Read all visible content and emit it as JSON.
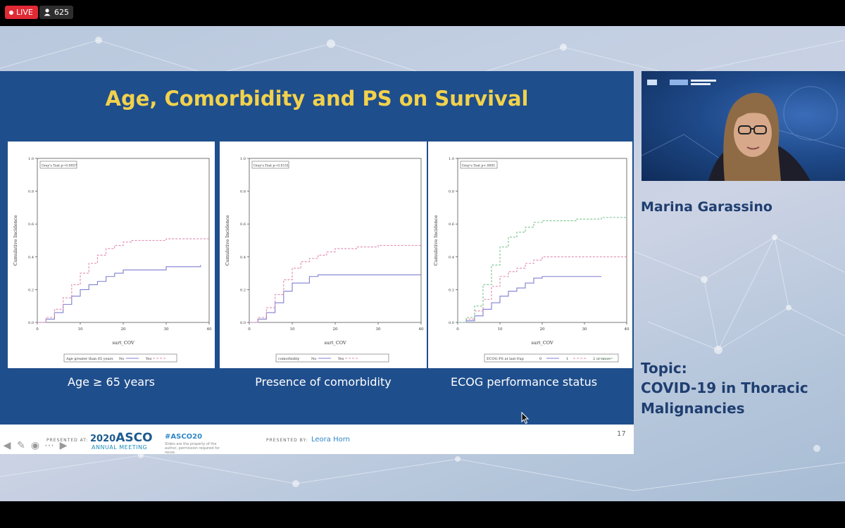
{
  "stream": {
    "live_label": "LIVE",
    "viewer_count": "625",
    "live_color": "#e02a35"
  },
  "slide": {
    "title": "Age, Comorbidity and PS on Survival",
    "title_color": "#f2d24c",
    "background": "#1f4e8c",
    "page_number": "17",
    "captions": [
      "Age ≥ 65 years",
      "Presence of comorbidity",
      "ECOG performance status"
    ],
    "footer": {
      "presented_at": "PRESENTED AT:",
      "meeting_year": "2020",
      "meeting_name": "ASCO",
      "meeting_subtitle": "ANNUAL MEETING",
      "hashtag": "#ASCO20",
      "disclaimer": "Slides are the property of the author, permission required for reuse.",
      "presented_by": "PRESENTED BY:",
      "presenter": "Leora Horn"
    }
  },
  "chart_data": [
    {
      "type": "line",
      "test_label": "Gray's Test p=0.0057",
      "xlabel": "surt_COV",
      "ylabel": "Cumulative Incidence",
      "xlim": [
        0,
        40
      ],
      "ylim": [
        0,
        1.0
      ],
      "x_ticks": [
        "0",
        "10",
        "20",
        "30",
        "40"
      ],
      "y_ticks": [
        "0.0",
        "0.2",
        "0.4",
        "0.6",
        "0.8",
        "1.0"
      ],
      "legend_title": "Age greater than 65 years",
      "series": [
        {
          "name": "No",
          "color": "#7f7fd0",
          "dashed": false,
          "points": [
            [
              0,
              0
            ],
            [
              2,
              0.02
            ],
            [
              4,
              0.06
            ],
            [
              6,
              0.11
            ],
            [
              8,
              0.16
            ],
            [
              10,
              0.2
            ],
            [
              12,
              0.23
            ],
            [
              14,
              0.25
            ],
            [
              16,
              0.28
            ],
            [
              18,
              0.3
            ],
            [
              20,
              0.32
            ],
            [
              24,
              0.32
            ],
            [
              30,
              0.34
            ],
            [
              38,
              0.35
            ]
          ]
        },
        {
          "name": "Yes",
          "color": "#e08ab0",
          "dashed": true,
          "points": [
            [
              0,
              0
            ],
            [
              2,
              0.03
            ],
            [
              4,
              0.08
            ],
            [
              6,
              0.15
            ],
            [
              8,
              0.23
            ],
            [
              10,
              0.3
            ],
            [
              12,
              0.36
            ],
            [
              14,
              0.41
            ],
            [
              16,
              0.45
            ],
            [
              18,
              0.47
            ],
            [
              20,
              0.49
            ],
            [
              22,
              0.5
            ],
            [
              30,
              0.51
            ],
            [
              40,
              0.51
            ]
          ]
        }
      ]
    },
    {
      "type": "line",
      "test_label": "Gray's Test p=0.0151",
      "xlabel": "surt_COV",
      "ylabel": "Cumulative Incidence",
      "xlim": [
        0,
        40
      ],
      "ylim": [
        0,
        1.0
      ],
      "x_ticks": [
        "0",
        "10",
        "20",
        "30",
        "40"
      ],
      "y_ticks": [
        "0.0",
        "0.2",
        "0.4",
        "0.6",
        "0.8",
        "1.0"
      ],
      "legend_title": "comorbidity",
      "series": [
        {
          "name": "No",
          "color": "#7f7fd0",
          "dashed": false,
          "points": [
            [
              0,
              0
            ],
            [
              2,
              0.02
            ],
            [
              4,
              0.06
            ],
            [
              6,
              0.12
            ],
            [
              8,
              0.19
            ],
            [
              10,
              0.24
            ],
            [
              14,
              0.28
            ],
            [
              16,
              0.29
            ],
            [
              30,
              0.29
            ],
            [
              40,
              0.29
            ]
          ]
        },
        {
          "name": "Yes",
          "color": "#e08ab0",
          "dashed": true,
          "points": [
            [
              0,
              0
            ],
            [
              2,
              0.03
            ],
            [
              4,
              0.09
            ],
            [
              6,
              0.17
            ],
            [
              8,
              0.26
            ],
            [
              10,
              0.33
            ],
            [
              12,
              0.37
            ],
            [
              14,
              0.39
            ],
            [
              16,
              0.41
            ],
            [
              18,
              0.43
            ],
            [
              20,
              0.45
            ],
            [
              25,
              0.46
            ],
            [
              30,
              0.47
            ],
            [
              40,
              0.47
            ]
          ]
        }
      ]
    },
    {
      "type": "line",
      "test_label": "Gray's Test p<.0001",
      "xlabel": "surt_COV",
      "ylabel": "Cumulative Incidence",
      "xlim": [
        0,
        40
      ],
      "ylim": [
        0,
        1.0
      ],
      "x_ticks": [
        "0",
        "10",
        "20",
        "30",
        "40"
      ],
      "y_ticks": [
        "0.0",
        "0.2",
        "0.4",
        "0.6",
        "0.8",
        "1.0"
      ],
      "legend_title": "ECOG PS at last f/up",
      "series": [
        {
          "name": "0",
          "color": "#7f7fd0",
          "dashed": false,
          "points": [
            [
              0,
              0
            ],
            [
              2,
              0.01
            ],
            [
              4,
              0.04
            ],
            [
              6,
              0.08
            ],
            [
              8,
              0.12
            ],
            [
              10,
              0.16
            ],
            [
              12,
              0.19
            ],
            [
              14,
              0.21
            ],
            [
              16,
              0.24
            ],
            [
              18,
              0.27
            ],
            [
              20,
              0.28
            ],
            [
              34,
              0.28
            ]
          ]
        },
        {
          "name": "1",
          "color": "#e08ab0",
          "dashed": true,
          "points": [
            [
              0,
              0
            ],
            [
              2,
              0.02
            ],
            [
              4,
              0.07
            ],
            [
              6,
              0.14
            ],
            [
              8,
              0.22
            ],
            [
              10,
              0.28
            ],
            [
              12,
              0.31
            ],
            [
              14,
              0.33
            ],
            [
              16,
              0.36
            ],
            [
              18,
              0.38
            ],
            [
              20,
              0.4
            ],
            [
              40,
              0.4
            ]
          ]
        },
        {
          "name": "2 or more",
          "color": "#7ac58f",
          "dashed": true,
          "points": [
            [
              0,
              0
            ],
            [
              2,
              0.03
            ],
            [
              4,
              0.1
            ],
            [
              6,
              0.23
            ],
            [
              8,
              0.35
            ],
            [
              10,
              0.46
            ],
            [
              12,
              0.52
            ],
            [
              14,
              0.55
            ],
            [
              16,
              0.58
            ],
            [
              18,
              0.61
            ],
            [
              20,
              0.62
            ],
            [
              28,
              0.63
            ],
            [
              34,
              0.64
            ],
            [
              40,
              0.64
            ]
          ]
        }
      ]
    }
  ],
  "speaker": {
    "name": "Marina Garassino",
    "topic_label": "Topic:",
    "topic": "COVID-19 in Thoracic Malignancies"
  }
}
